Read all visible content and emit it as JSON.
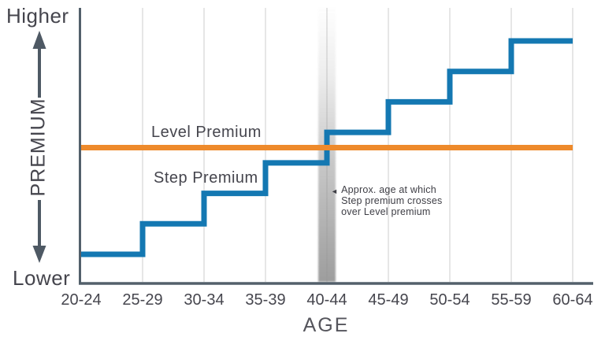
{
  "y_axis": {
    "title": "PREMIUM",
    "higher_label": "Higher",
    "lower_label": "Lower"
  },
  "x_axis": {
    "title": "AGE"
  },
  "annotation": {
    "marker": "◄",
    "lines": [
      "Approx. age at which",
      "Step premium crosses",
      "over Level premium"
    ]
  },
  "colors": {
    "step_line": "#1478B2",
    "level_line": "#EE8A2B",
    "axis": "#53606B",
    "grid": "#DDDDDD",
    "band": "#909090",
    "text": "#45454D"
  },
  "chart_data": {
    "type": "line",
    "categories": [
      "20-24",
      "25-29",
      "30-34",
      "35-39",
      "40-44",
      "45-49",
      "50-54",
      "55-59",
      "60-64"
    ],
    "series": [
      {
        "name": "Step Premium",
        "style": "step-after",
        "color": "#1478B2",
        "values": [
          1,
          2,
          3,
          4,
          5,
          6,
          7,
          8,
          8
        ]
      },
      {
        "name": "Level Premium",
        "style": "horizontal-reference",
        "color": "#EE8A2B",
        "value": 4.5
      }
    ],
    "xlabel": "AGE",
    "ylabel": "PREMIUM",
    "y_scale": "relative premium level (1 = lowest step, 8 = highest step); axis unlabeled, runs Lower to Higher",
    "ylim": [
      0,
      9
    ],
    "grid": true,
    "legend_position": "inline-labels",
    "crossover_index": 4,
    "crossover_category": "40-44",
    "crossover_note": "Step premium crosses over Level premium at approx. age 40-44 (shaded band)"
  }
}
